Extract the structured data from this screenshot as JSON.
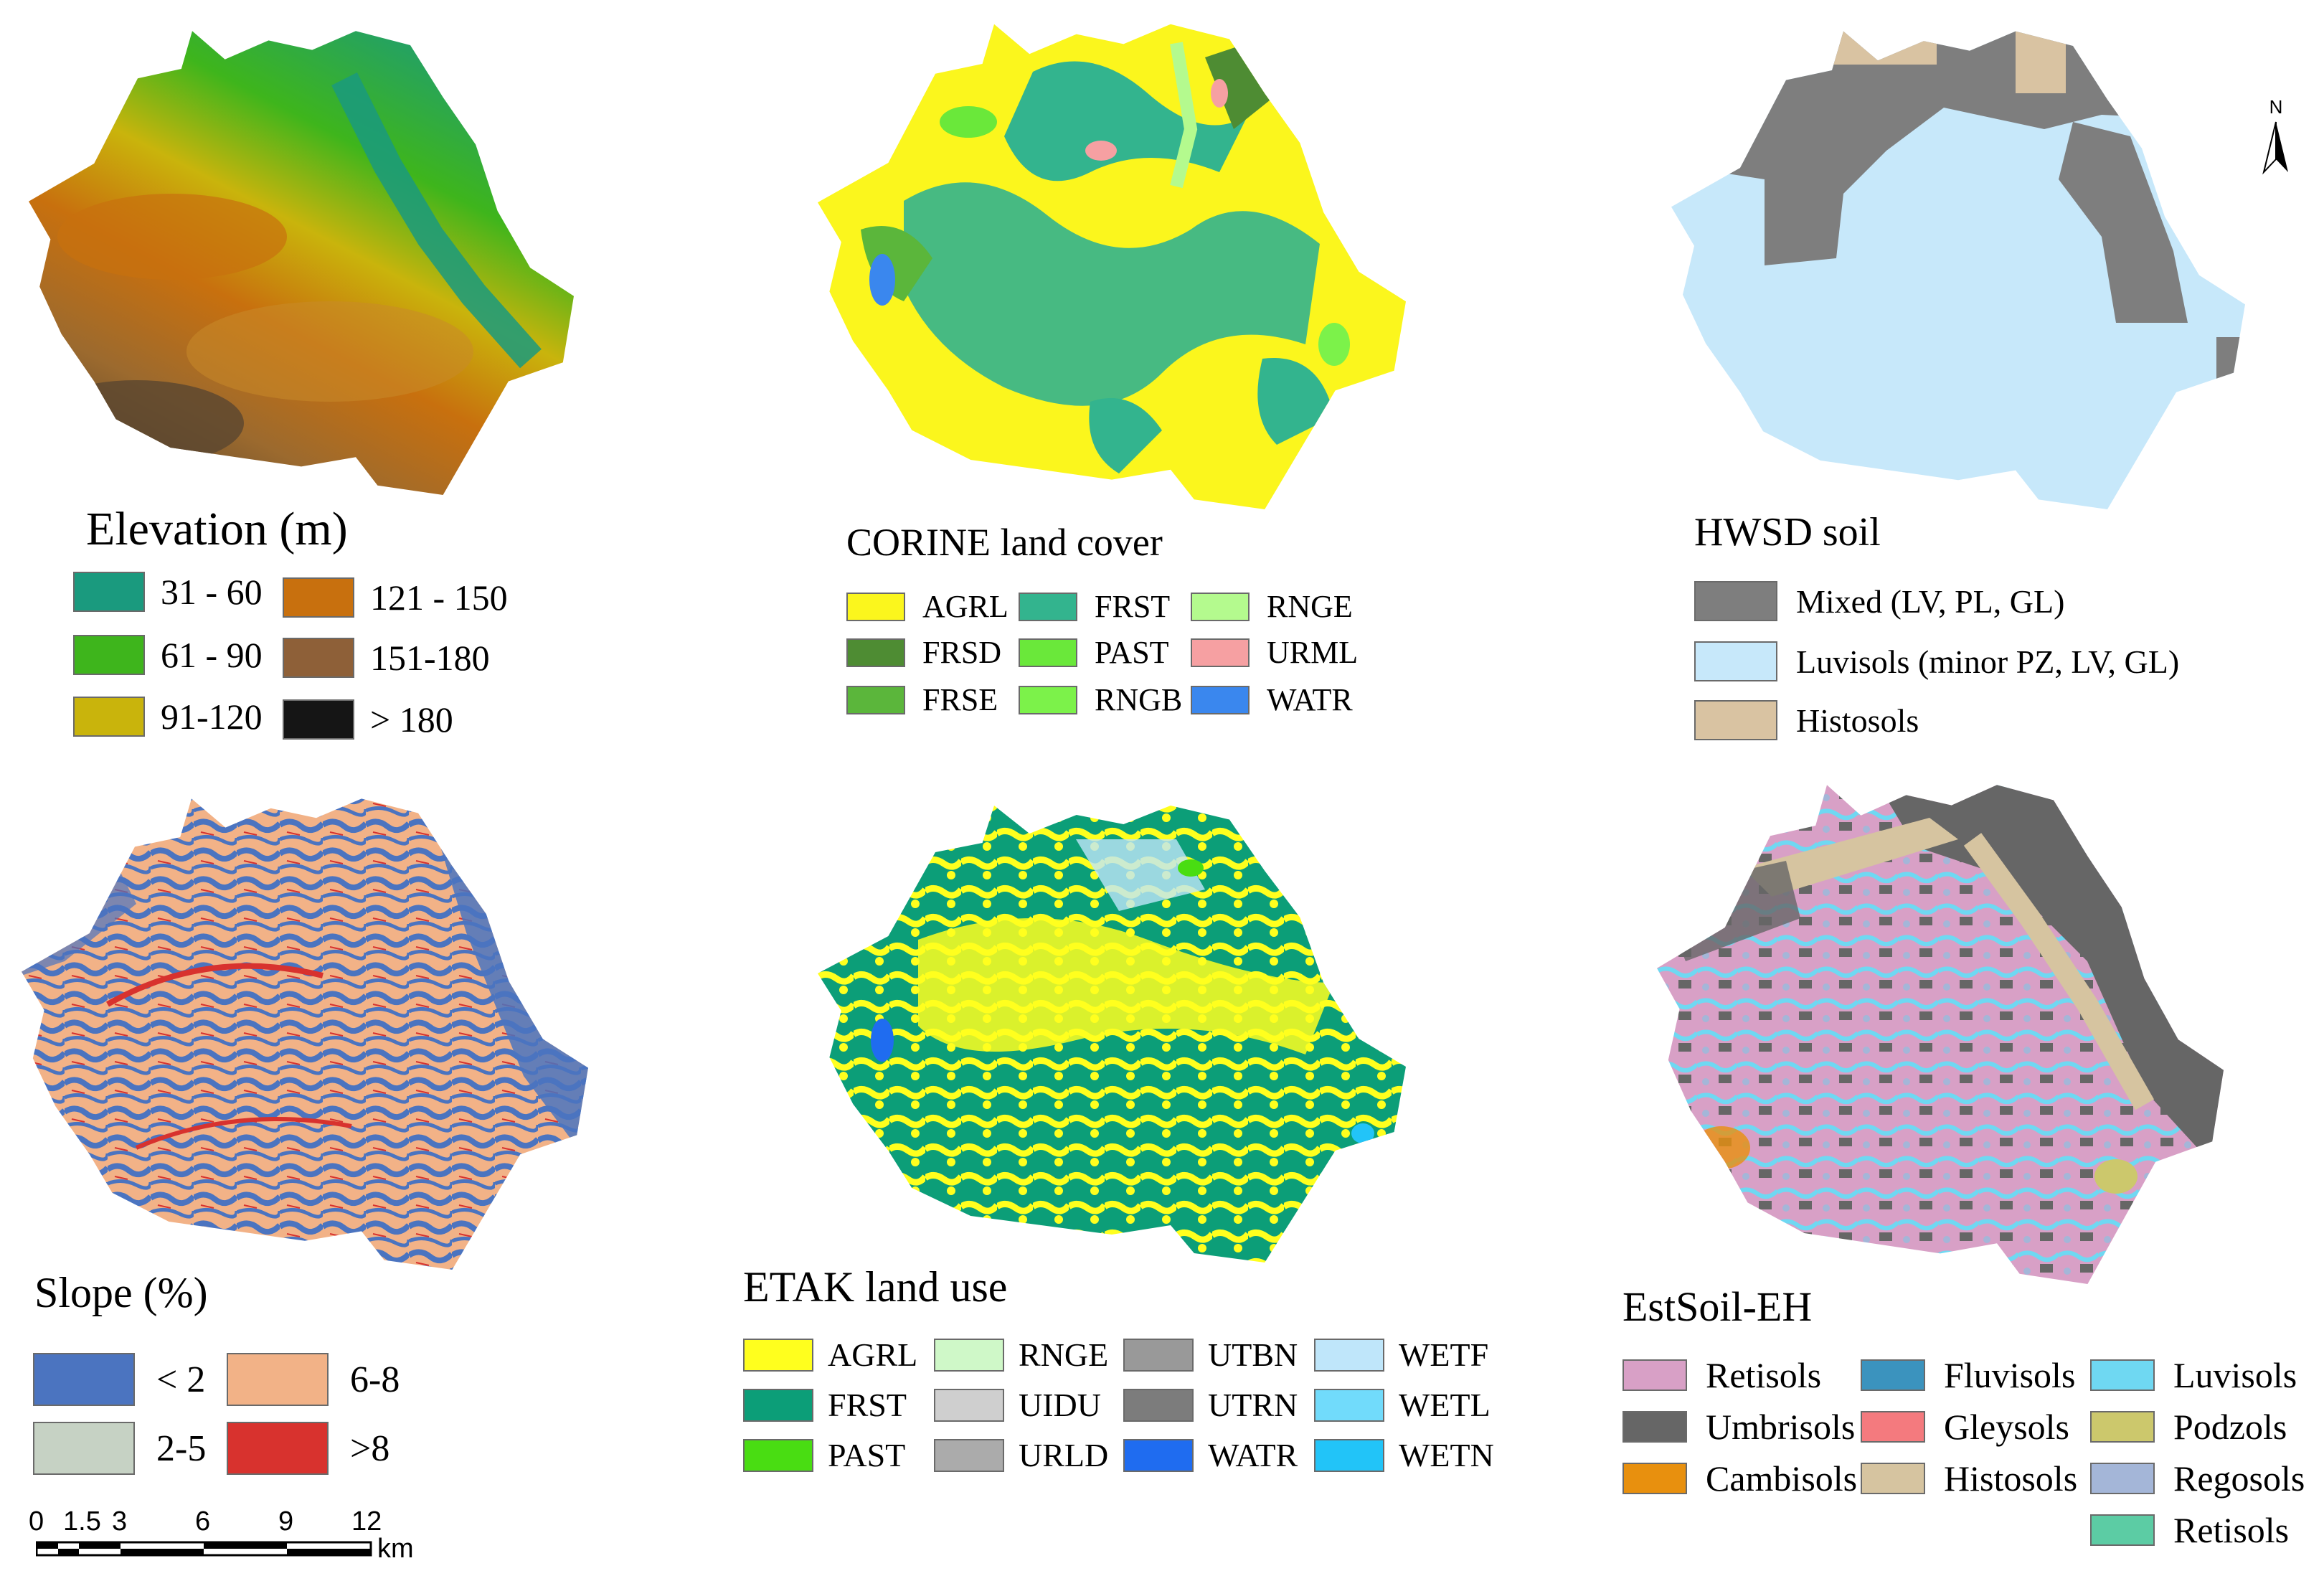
{
  "colors": {
    "elev_31_60": "#1a9a7e",
    "elev_61_90": "#3eb51c",
    "elev_91_120": "#c9b40c",
    "elev_121_150": "#c8700e",
    "elev_151_180": "#8e6038",
    "elev_gt180": "#151515",
    "agrl": "#fbf61d",
    "frsd": "#4e8c33",
    "frse": "#5bb63b",
    "frst": "#33b48e",
    "past": "#6ae83a",
    "rngb": "#7cf24a",
    "rnge": "#b4fa8e",
    "urml": "#f6a0a2",
    "watr": "#3a87ee",
    "hwsd_mixed": "#7e7e7e",
    "hwsd_luvisols": "#c7e8fa",
    "hwsd_histosols": "#d9c3a2",
    "slope_lt2": "#4b74c0",
    "slope_2_5": "#c6d2c4",
    "slope_6_8": "#f2b287",
    "slope_gt8": "#d8322e",
    "etak_agrl": "#ffff1e",
    "etak_frst": "#0c9e78",
    "etak_past": "#49dd12",
    "etak_rnge": "#cff8c8",
    "etak_uidu": "#cfcfcf",
    "etak_urld": "#ababab",
    "etak_utbn": "#999999",
    "etak_utrn": "#7c7c7c",
    "etak_watr": "#1f6cf0",
    "etak_wetf": "#bfe6fa",
    "etak_wetl": "#71dbfb",
    "etak_wetn": "#22c4f8",
    "est_retisols": "#d8a0c6",
    "est_umbrisols": "#666666",
    "est_cambisols": "#e8900e",
    "est_fluvisols": "#3b93be",
    "est_gleysols": "#f47a7e",
    "est_histosols": "#d6c4a0",
    "est_luvisols": "#6fd8f2",
    "est_podzols": "#ccc86c",
    "est_regosols": "#a4b6d8",
    "est_retisols2": "#5ccca4"
  },
  "elevation": {
    "title": "Elevation (m)",
    "items": [
      {
        "label": "31 - 60",
        "color": "#1a9a7e"
      },
      {
        "label": "61 - 90",
        "color": "#3eb51c"
      },
      {
        "label": "91-120",
        "color": "#c9b40c"
      },
      {
        "label": "121 - 150",
        "color": "#c8700e"
      },
      {
        "label": "151-180",
        "color": "#8e6038"
      },
      {
        "label": "> 180",
        "color": "#151515"
      }
    ]
  },
  "corine": {
    "title": "CORINE land cover",
    "items": [
      {
        "label": "AGRL",
        "color": "#fbf61d"
      },
      {
        "label": "FRSD",
        "color": "#4e8c33"
      },
      {
        "label": "FRSE",
        "color": "#5bb63b"
      },
      {
        "label": "FRST",
        "color": "#33b48e"
      },
      {
        "label": "PAST",
        "color": "#6ae83a"
      },
      {
        "label": "RNGB",
        "color": "#7cf24a"
      },
      {
        "label": "RNGE",
        "color": "#b4fa8e"
      },
      {
        "label": "URML",
        "color": "#f6a0a2"
      },
      {
        "label": "WATR",
        "color": "#3a87ee"
      }
    ]
  },
  "hwsd": {
    "title": "HWSD soil",
    "items": [
      {
        "label": "Mixed (LV, PL, GL)",
        "color": "#7e7e7e"
      },
      {
        "label": "Luvisols (minor PZ, LV, GL)",
        "color": "#c7e8fa"
      },
      {
        "label": "Histosols",
        "color": "#d9c3a2"
      }
    ]
  },
  "north_arrow": {
    "label": "N"
  },
  "slope": {
    "title": "Slope (%)",
    "items": [
      {
        "label": "< 2",
        "color": "#4b74c0"
      },
      {
        "label": "2-5",
        "color": "#c6d2c4"
      },
      {
        "label": "6-8",
        "color": "#f2b287"
      },
      {
        "label": ">8",
        "color": "#d8322e"
      }
    ]
  },
  "scale_bar": {
    "ticks": [
      "0",
      "1.5",
      "3",
      "6",
      "9",
      "12"
    ],
    "unit": "km"
  },
  "etak": {
    "title": "ETAK land use",
    "items": [
      {
        "label": "AGRL",
        "color": "#ffff1e"
      },
      {
        "label": "FRST",
        "color": "#0c9e78"
      },
      {
        "label": "PAST",
        "color": "#49dd12"
      },
      {
        "label": "RNGE",
        "color": "#cff8c8"
      },
      {
        "label": "UIDU",
        "color": "#cfcfcf"
      },
      {
        "label": "URLD",
        "color": "#ababab"
      },
      {
        "label": "UTBN",
        "color": "#999999"
      },
      {
        "label": "UTRN",
        "color": "#7c7c7c"
      },
      {
        "label": "WATR",
        "color": "#1f6cf0"
      },
      {
        "label": "WETF",
        "color": "#bfe6fa"
      },
      {
        "label": "WETL",
        "color": "#71dbfb"
      },
      {
        "label": "WETN",
        "color": "#22c4f8"
      }
    ]
  },
  "estsoil": {
    "title": "EstSoil-EH",
    "items": [
      {
        "label": "Retisols",
        "color": "#d8a0c6"
      },
      {
        "label": "Umbrisols",
        "color": "#666666"
      },
      {
        "label": "Cambisols",
        "color": "#e8900e"
      },
      {
        "label": "Fluvisols",
        "color": "#3b93be"
      },
      {
        "label": "Gleysols",
        "color": "#f47a7e"
      },
      {
        "label": "Histosols",
        "color": "#d6c4a0"
      },
      {
        "label": "Luvisols",
        "color": "#6fd8f2"
      },
      {
        "label": "Podzols",
        "color": "#ccc86c"
      },
      {
        "label": "Regosols",
        "color": "#a4b6d8"
      },
      {
        "label": "Retisols",
        "color": "#5ccca4"
      }
    ]
  }
}
